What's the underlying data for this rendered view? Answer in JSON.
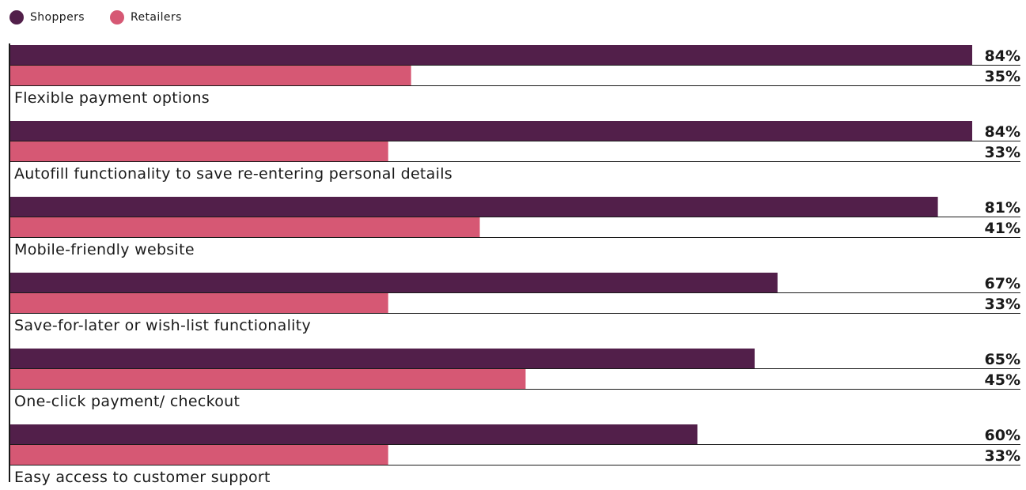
{
  "legend": [
    {
      "name": "Shoppers",
      "color": "#521f4a"
    },
    {
      "name": "Retailers",
      "color": "#d65874"
    }
  ],
  "chart_data": {
    "type": "bar",
    "orientation": "horizontal",
    "categories": [
      "Flexible payment options",
      "Autofill functionality to save re-entering personal details",
      "Mobile-friendly website",
      "Save-for-later or wish-list functionality",
      "One-click payment/ checkout",
      "Easy access to customer support"
    ],
    "series": [
      {
        "name": "Shoppers",
        "color": "#521f4a",
        "values": [
          84,
          84,
          81,
          67,
          65,
          60
        ]
      },
      {
        "name": "Retailers",
        "color": "#d65874",
        "values": [
          35,
          33,
          41,
          33,
          45,
          33
        ]
      }
    ],
    "value_labels": [
      [
        "84%",
        "84%",
        "81%",
        "67%",
        "65%",
        "60%"
      ],
      [
        "35%",
        "33%",
        "41%",
        "33%",
        "45%",
        "33%"
      ]
    ],
    "xlim": [
      0,
      84
    ],
    "grid": false,
    "legend_position": "top-left"
  }
}
